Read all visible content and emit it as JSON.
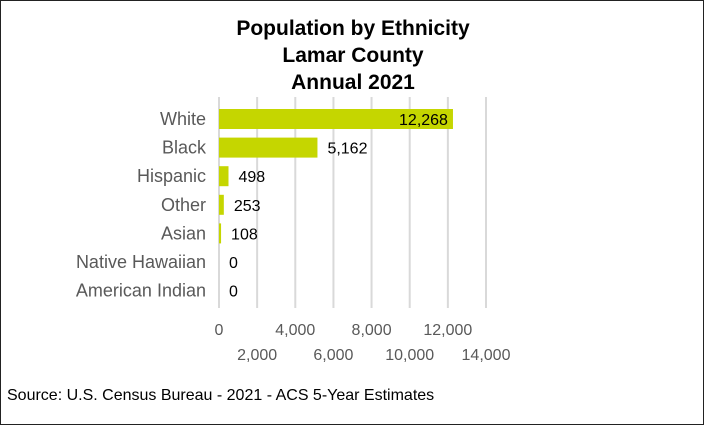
{
  "chart_data": {
    "type": "bar",
    "orientation": "horizontal",
    "title_lines": [
      "Population by Ethnicity",
      "Lamar County",
      "Annual 2021"
    ],
    "categories": [
      "White",
      "Black",
      "Hispanic",
      "Other",
      "Asian",
      "Native Hawaiian",
      "American Indian"
    ],
    "values": [
      12268,
      5162,
      498,
      253,
      108,
      0,
      0
    ],
    "value_labels": [
      "12,268",
      "5,162",
      "498",
      "253",
      "108",
      "0",
      "0"
    ],
    "xlim": [
      0,
      14000
    ],
    "x_ticks": [
      0,
      2000,
      4000,
      6000,
      8000,
      10000,
      12000,
      14000
    ],
    "x_tick_labels": [
      "0",
      "2,000",
      "4,000",
      "6,000",
      "8,000",
      "10,000",
      "12,000",
      "14,000"
    ],
    "grid": true,
    "bar_color": "#c5d600",
    "grid_color": "#d9d9d9"
  },
  "source": "Source: U.S. Census Bureau - 2021 - ACS 5-Year Estimates"
}
